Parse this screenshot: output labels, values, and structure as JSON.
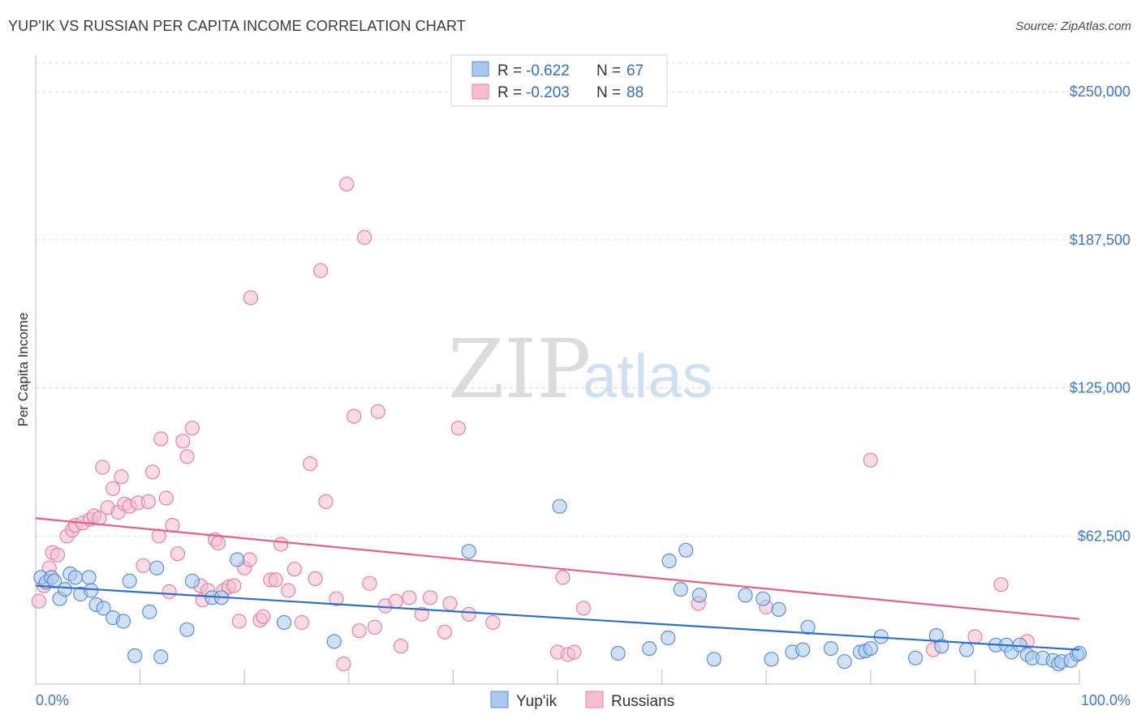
{
  "header": {
    "title": "YUP'IK VS RUSSIAN PER CAPITA INCOME CORRELATION CHART",
    "source": "Source: ZipAtlas.com"
  },
  "watermark": {
    "part1": "ZIP",
    "part2": "atlas"
  },
  "legend_top": {
    "rows": [
      {
        "r_label": "R =",
        "r_value": "-0.622",
        "n_label": "N =",
        "n_value": "67"
      },
      {
        "r_label": "R =",
        "r_value": "-0.203",
        "n_label": "N =",
        "n_value": "88"
      }
    ]
  },
  "legend_bottom": {
    "items": [
      "Yup'ik",
      "Russians"
    ]
  },
  "colors": {
    "yupik_fill": "#aac8ef",
    "yupik_stroke": "#5b8fd6",
    "yupik_line": "#2f6fcc",
    "russian_fill": "#f6bdd0",
    "russian_stroke": "#e7829f",
    "russian_line": "#e4618a",
    "axis_text": "#3c78c8",
    "grid": "#d8d8d8"
  },
  "chart_data": {
    "type": "scatter",
    "title": "YUP'IK VS RUSSIAN PER CAPITA INCOME CORRELATION CHART",
    "xlabel": "",
    "ylabel": "Per Capita Income",
    "xlim": [
      0,
      100
    ],
    "ylim": [
      0,
      262000
    ],
    "x_tick_labels": [
      "0.0%",
      "100.0%"
    ],
    "y_ticks": [
      62500,
      125000,
      187500,
      250000
    ],
    "y_tick_labels": [
      "$62,500",
      "$125,000",
      "$187,500",
      "$250,000"
    ],
    "grid": true,
    "legend_position": "top-center",
    "series": [
      {
        "name": "Yup'ik",
        "r": -0.622,
        "n": 67,
        "trend": {
          "x": [
            0,
            100
          ],
          "y": [
            41500,
            14500
          ]
        },
        "points": [
          [
            0.5,
            45000
          ],
          [
            1.0,
            43000
          ],
          [
            1.5,
            45000
          ],
          [
            1.8,
            43500
          ],
          [
            2.3,
            36000
          ],
          [
            2.8,
            40000
          ],
          [
            3.3,
            46500
          ],
          [
            3.8,
            45000
          ],
          [
            4.3,
            38000
          ],
          [
            5.1,
            45000
          ],
          [
            5.3,
            39500
          ],
          [
            5.8,
            33500
          ],
          [
            6.5,
            32000
          ],
          [
            7.4,
            28000
          ],
          [
            8.4,
            26500
          ],
          [
            9.0,
            43500
          ],
          [
            9.5,
            12000
          ],
          [
            10.9,
            30500
          ],
          [
            11.6,
            49000
          ],
          [
            12.0,
            11500
          ],
          [
            14.5,
            23000
          ],
          [
            15.0,
            43500
          ],
          [
            16.9,
            36500
          ],
          [
            17.8,
            36500
          ],
          [
            19.3,
            52500
          ],
          [
            23.8,
            26000
          ],
          [
            28.6,
            18000
          ],
          [
            41.5,
            56000
          ],
          [
            50.2,
            75000
          ],
          [
            55.8,
            13000
          ],
          [
            58.8,
            15000
          ],
          [
            60.6,
            19500
          ],
          [
            60.7,
            52000
          ],
          [
            61.8,
            40000
          ],
          [
            62.3,
            56500
          ],
          [
            63.6,
            37500
          ],
          [
            65.0,
            10500
          ],
          [
            68.0,
            37500
          ],
          [
            69.7,
            36000
          ],
          [
            70.5,
            10500
          ],
          [
            71.2,
            31500
          ],
          [
            72.5,
            13500
          ],
          [
            73.5,
            14500
          ],
          [
            74.0,
            24000
          ],
          [
            76.2,
            15000
          ],
          [
            77.5,
            9500
          ],
          [
            79.0,
            13500
          ],
          [
            79.5,
            14000
          ],
          [
            80.0,
            15000
          ],
          [
            81.0,
            20000
          ],
          [
            84.3,
            11000
          ],
          [
            86.3,
            20500
          ],
          [
            86.8,
            16000
          ],
          [
            89.2,
            14500
          ],
          [
            92.0,
            16500
          ],
          [
            93.0,
            16500
          ],
          [
            93.5,
            13500
          ],
          [
            94.3,
            16500
          ],
          [
            95.0,
            12500
          ],
          [
            95.5,
            11000
          ],
          [
            96.5,
            11000
          ],
          [
            97.5,
            10000
          ],
          [
            98.0,
            8500
          ],
          [
            98.3,
            9500
          ],
          [
            99.2,
            10000
          ],
          [
            99.8,
            12500
          ],
          [
            100.0,
            13000
          ]
        ]
      },
      {
        "name": "Russians",
        "r": -0.203,
        "n": 88,
        "trend": {
          "x": [
            0,
            100
          ],
          "y": [
            70000,
            27500
          ]
        },
        "points": [
          [
            0.3,
            35000
          ],
          [
            0.8,
            41500
          ],
          [
            1.3,
            49000
          ],
          [
            1.6,
            55500
          ],
          [
            2.1,
            54500
          ],
          [
            3.0,
            62500
          ],
          [
            3.5,
            65000
          ],
          [
            3.8,
            67000
          ],
          [
            4.5,
            68000
          ],
          [
            5.2,
            69500
          ],
          [
            5.6,
            71000
          ],
          [
            6.1,
            70000
          ],
          [
            6.4,
            91500
          ],
          [
            6.9,
            74500
          ],
          [
            7.4,
            82500
          ],
          [
            7.9,
            72500
          ],
          [
            8.2,
            87500
          ],
          [
            8.5,
            76000
          ],
          [
            9.0,
            75000
          ],
          [
            9.8,
            76500
          ],
          [
            10.3,
            50000
          ],
          [
            10.8,
            77000
          ],
          [
            11.2,
            89500
          ],
          [
            11.8,
            62500
          ],
          [
            12.0,
            103500
          ],
          [
            12.5,
            78500
          ],
          [
            12.8,
            39000
          ],
          [
            13.1,
            67000
          ],
          [
            13.6,
            55000
          ],
          [
            14.1,
            102500
          ],
          [
            14.5,
            96000
          ],
          [
            15.0,
            108000
          ],
          [
            15.8,
            41500
          ],
          [
            16.0,
            35500
          ],
          [
            16.5,
            39500
          ],
          [
            17.2,
            61000
          ],
          [
            17.5,
            59500
          ],
          [
            18.0,
            39500
          ],
          [
            18.5,
            41000
          ],
          [
            19.0,
            41500
          ],
          [
            19.5,
            26500
          ],
          [
            20.0,
            49000
          ],
          [
            20.5,
            52500
          ],
          [
            20.6,
            163000
          ],
          [
            21.5,
            27000
          ],
          [
            21.8,
            28500
          ],
          [
            22.5,
            44000
          ],
          [
            23.0,
            44000
          ],
          [
            23.5,
            59000
          ],
          [
            24.2,
            39500
          ],
          [
            24.8,
            48500
          ],
          [
            25.5,
            26000
          ],
          [
            26.3,
            93000
          ],
          [
            26.8,
            44500
          ],
          [
            27.3,
            174500
          ],
          [
            27.8,
            77000
          ],
          [
            28.8,
            36000
          ],
          [
            29.5,
            8500
          ],
          [
            29.8,
            211000
          ],
          [
            30.5,
            113000
          ],
          [
            31.0,
            22500
          ],
          [
            31.5,
            188500
          ],
          [
            32.0,
            42500
          ],
          [
            32.5,
            24000
          ],
          [
            32.8,
            115000
          ],
          [
            33.5,
            33000
          ],
          [
            34.5,
            35000
          ],
          [
            35.0,
            16000
          ],
          [
            35.8,
            36500
          ],
          [
            37.0,
            29500
          ],
          [
            37.8,
            36500
          ],
          [
            39.2,
            22000
          ],
          [
            39.7,
            34000
          ],
          [
            40.5,
            108000
          ],
          [
            41.5,
            29500
          ],
          [
            43.8,
            26000
          ],
          [
            50.0,
            13500
          ],
          [
            50.5,
            45000
          ],
          [
            51.0,
            12500
          ],
          [
            51.6,
            13500
          ],
          [
            52.5,
            32000
          ],
          [
            63.5,
            34000
          ],
          [
            70.0,
            32500
          ],
          [
            80.0,
            94500
          ],
          [
            86.0,
            14500
          ],
          [
            92.5,
            42000
          ],
          [
            90.0,
            20000
          ],
          [
            95.0,
            18000
          ]
        ]
      }
    ]
  }
}
